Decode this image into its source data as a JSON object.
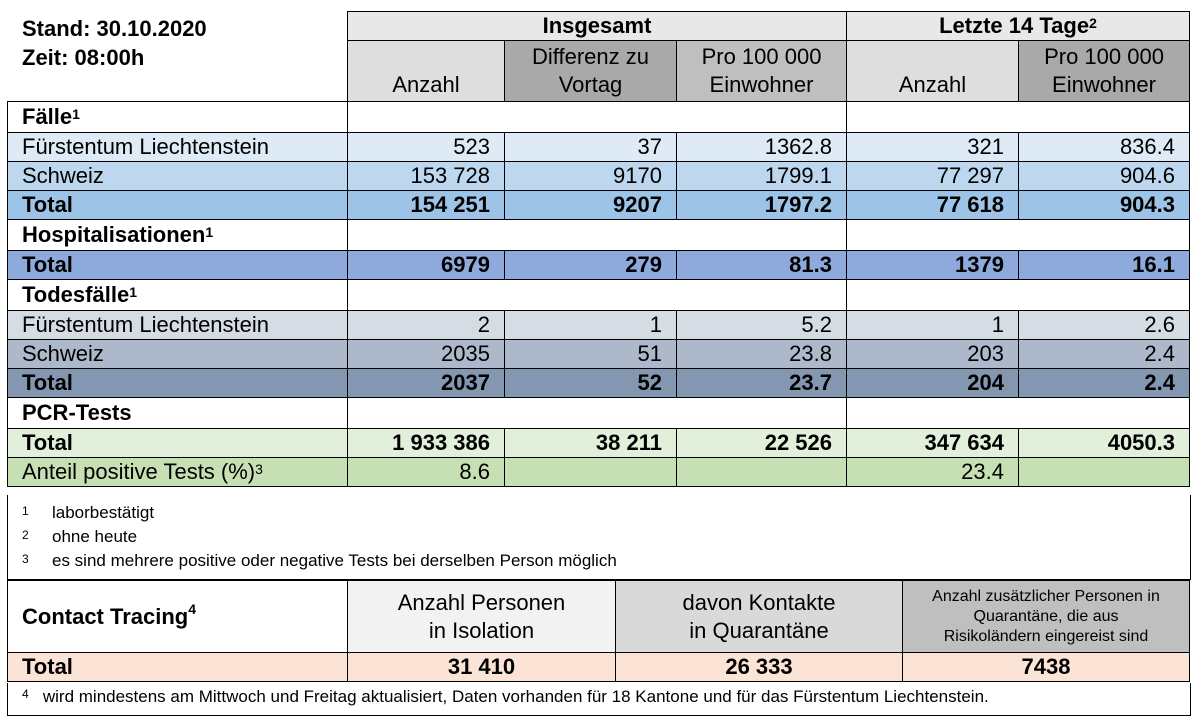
{
  "stand": "Stand: 30.10.2020",
  "zeit": "Zeit: 08:00h",
  "header": {
    "insgesamt": "Insgesamt",
    "letzte": "Letzte 14 Tage",
    "letzte_sup": "2",
    "col_anzahl": "Anzahl",
    "col_diff_1": "Differenz zu",
    "col_diff_2": "Vortag",
    "col_pro_1": "Pro 100 000",
    "col_pro_2": "Einwohner",
    "col_anzahl14": "Anzahl",
    "col_pro14_1": "Pro 100 000",
    "col_pro14_2": "Einwohner"
  },
  "faelle": {
    "title": "Fälle",
    "sup": "1",
    "rows": [
      {
        "label": "Fürstentum Liechtenstein",
        "v": [
          "523",
          "37",
          "1362.8",
          "321",
          "836.4"
        ]
      },
      {
        "label": "Schweiz",
        "v": [
          "153 728",
          "9170",
          "1799.1",
          "77 297",
          "904.6"
        ]
      },
      {
        "label": "Total",
        "v": [
          "154 251",
          "9207",
          "1797.2",
          "77 618",
          "904.3"
        ]
      }
    ]
  },
  "hosp": {
    "title": "Hospitalisationen",
    "sup": "1",
    "rows": [
      {
        "label": "Total",
        "v": [
          "6979",
          "279",
          "81.3",
          "1379",
          "16.1"
        ]
      }
    ]
  },
  "tod": {
    "title": "Todesfälle",
    "sup": "1",
    "rows": [
      {
        "label": "Fürstentum Liechtenstein",
        "v": [
          "2",
          "1",
          "5.2",
          "1",
          "2.6"
        ]
      },
      {
        "label": "Schweiz",
        "v": [
          "2035",
          "51",
          "23.8",
          "203",
          "2.4"
        ]
      },
      {
        "label": "Total",
        "v": [
          "2037",
          "52",
          "23.7",
          "204",
          "2.4"
        ]
      }
    ]
  },
  "pcr": {
    "title": "PCR-Tests",
    "total": {
      "label": "Total",
      "v": [
        "1 933 386",
        "38 211",
        "22 526",
        "347 634",
        "4050.3"
      ]
    },
    "anteil": {
      "label": "Anteil positive Tests (%)",
      "sup": "3",
      "v1": "8.6",
      "v4": "23.4"
    }
  },
  "footnotes": [
    {
      "n": "1",
      "t": "laborbestätigt"
    },
    {
      "n": "2",
      "t": "ohne heute"
    },
    {
      "n": "3",
      "t": "es sind mehrere positive oder negative Tests bei derselben Person möglich"
    }
  ],
  "ct": {
    "title": "Contact Tracing",
    "sup": "4",
    "h1a": "Anzahl Personen",
    "h1b": "in Isolation",
    "h2a": "davon Kontakte",
    "h2b": "in Quarantäne",
    "h3a": "Anzahl zusätzlicher Personen in",
    "h3b": "Quarantäne, die aus",
    "h3c": "Risikoländern eingereist sind",
    "total_label": "Total",
    "t1": "31 410",
    "t2": "26 333",
    "t3": "7438"
  },
  "foot4": {
    "n": "4",
    "t": "wird mindestens am Mittwoch und Freitag aktualisiert, Daten vorhanden für 18 Kantone und für das Fürstentum Liechtenstein."
  }
}
